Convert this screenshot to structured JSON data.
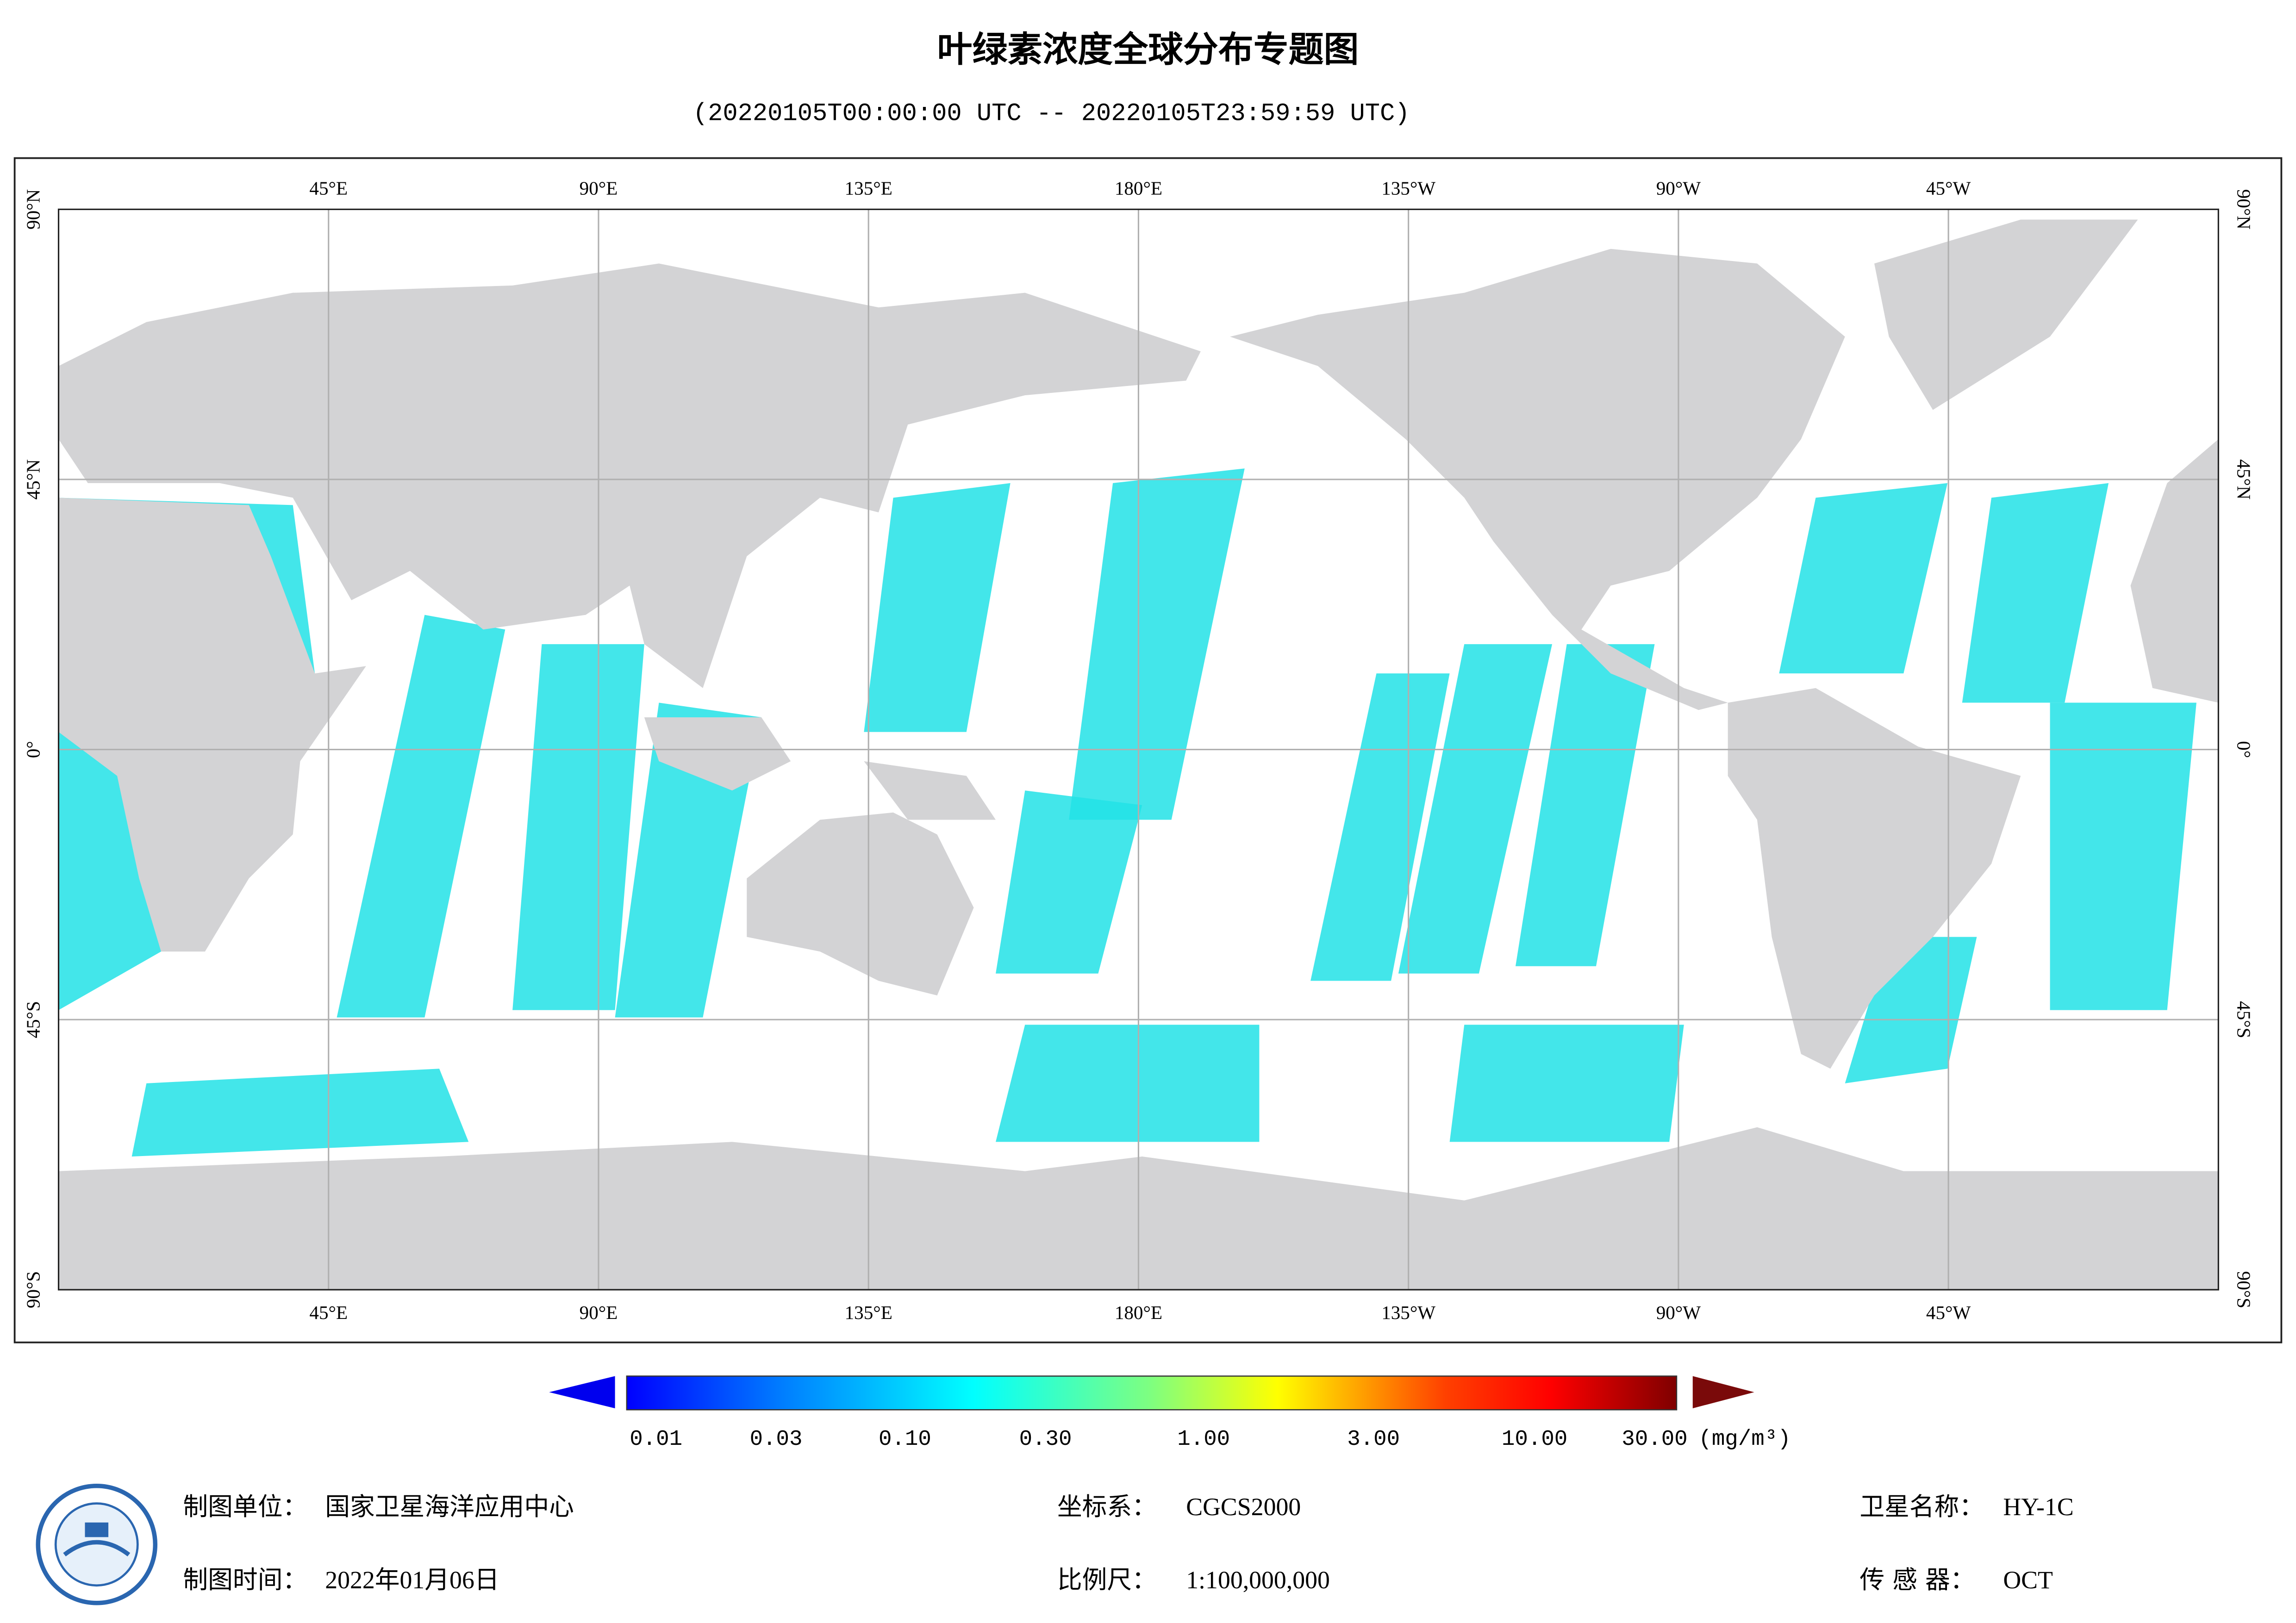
{
  "header": {
    "title": "叶绿素浓度全球分布专题图",
    "subtitle": "(20220105T00:00:00 UTC -- 20220105T23:59:59 UTC)"
  },
  "map": {
    "top_labels": [
      "45°E",
      "90°E",
      "135°E",
      "180°E",
      "135°W",
      "90°W",
      "45°W"
    ],
    "bottom_labels": [
      "45°E",
      "90°E",
      "135°E",
      "180°E",
      "135°W",
      "90°W",
      "45°W"
    ],
    "left_labels": [
      "90°N",
      "45°N",
      "0°",
      "45°S",
      "90°S"
    ],
    "right_labels": [
      "90°N",
      "45°N",
      "0°",
      "45°S",
      "90°S"
    ]
  },
  "colorbar": {
    "ticks": [
      "0.01",
      "0.03",
      "0.10",
      "0.30",
      "1.00",
      "3.00",
      "10.00",
      "30.00"
    ],
    "unit": "(mg/m³)"
  },
  "footer": {
    "unit_label": "制图单位：",
    "unit": "国家卫星海洋应用中心",
    "date_label": "制图时间：",
    "date": "2022年01月06日",
    "crs_label": "坐标系：",
    "crs": "CGCS2000",
    "scale_label": "比例尺：",
    "scale": "1:100,000,000",
    "satellite_label": "卫星名称：",
    "satellite": "HY-1C",
    "sensor_label": "传 感 器：",
    "sensor": "OCT"
  }
}
